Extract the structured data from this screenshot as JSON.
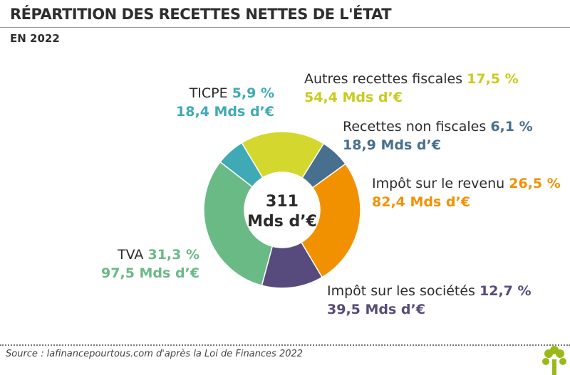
{
  "title": "RÉPARTITION DES RECETTES NETTES DE L'ÉTAT",
  "subtitle": "EN 2022",
  "source": "Source : lafinancepourtous.com d'après la Loi de Finances 2022",
  "chart_data": {
    "type": "pie",
    "donut": true,
    "title": "RÉPARTITION DES RECETTES NETTES DE L'ÉTAT",
    "subtitle": "EN 2022",
    "center_label": [
      "311",
      "Mds d’€"
    ],
    "total": 311,
    "unit": "Mds d’€",
    "slices": [
      {
        "name": "Recettes non fiscales",
        "percent": 6.1,
        "percent_label": "6,1 %",
        "amount": 18.9,
        "amount_label": "18,9 Mds d’€",
        "color": "#47708e"
      },
      {
        "name": "Impôt sur le revenu",
        "percent": 26.5,
        "percent_label": "26,5 %",
        "amount": 82.4,
        "amount_label": "82,4 Mds d’€",
        "color": "#f29100"
      },
      {
        "name": "Impôt sur les sociétés",
        "percent": 12.7,
        "percent_label": "12,7 %",
        "amount": 39.5,
        "amount_label": "39,5 Mds d’€",
        "color": "#574a7c"
      },
      {
        "name": "TVA",
        "percent": 31.3,
        "percent_label": "31,3 %",
        "amount": 97.5,
        "amount_label": "97,5 Mds d’€",
        "color": "#6aba86"
      },
      {
        "name": "TICPE",
        "percent": 5.9,
        "percent_label": "5,9 %",
        "amount": 18.4,
        "amount_label": "18,4 Mds d’€",
        "color": "#3faab5"
      },
      {
        "name": "Autres recettes fiscales",
        "percent": 17.5,
        "percent_label": "17,5 %",
        "amount": 54.4,
        "amount_label": "54,4 Mds d’€",
        "color": "#d4d72e"
      }
    ],
    "legend": "labels-around"
  }
}
